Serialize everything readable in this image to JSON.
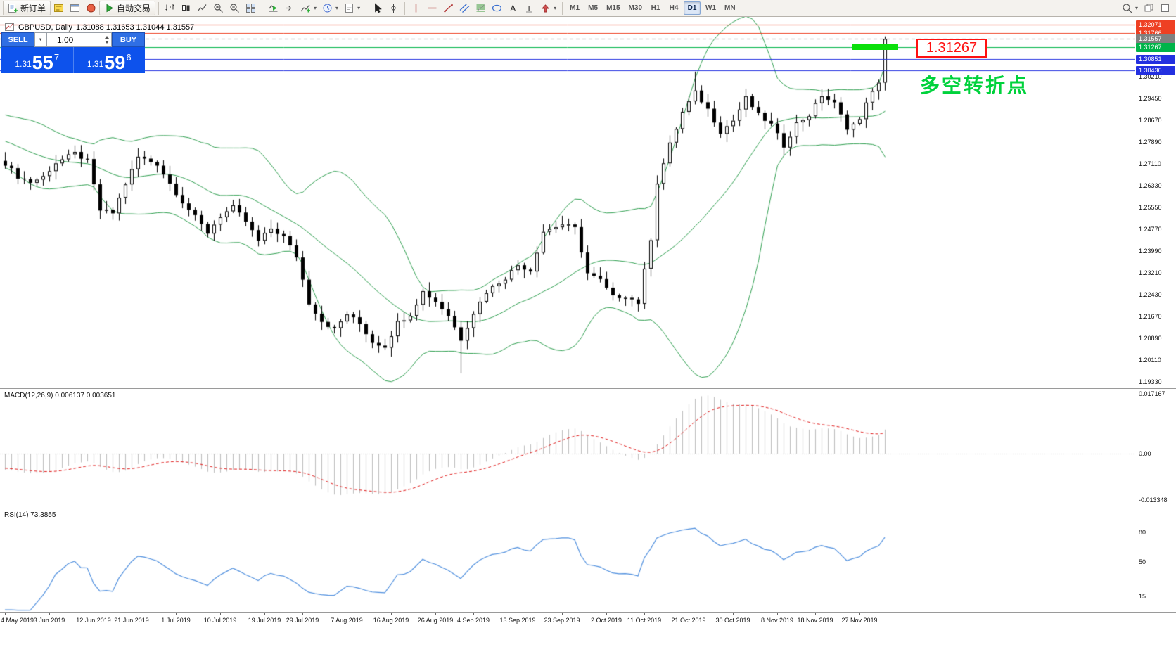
{
  "toolbar": {
    "groups": [
      [
        {
          "name": "new-order-button",
          "icon": "new-order",
          "label": "新订单"
        },
        {
          "name": "market-watch-button",
          "icon": "market-watch"
        },
        {
          "name": "data-window-button",
          "icon": "data-window"
        },
        {
          "name": "navigator-button",
          "icon": "navigator"
        },
        {
          "name": "autotrade-button",
          "icon": "autotrade",
          "label": "自动交易"
        }
      ],
      [
        {
          "name": "bar-chart-button",
          "icon": "bar-chart"
        },
        {
          "name": "candlestick-chart-button",
          "icon": "candle-chart"
        },
        {
          "name": "line-chart-button",
          "icon": "line-chart"
        },
        {
          "name": "zoom-in-button",
          "icon": "zoom-in"
        },
        {
          "name": "zoom-out-button",
          "icon": "zoom-out"
        },
        {
          "name": "tile-windows-button",
          "icon": "tile-windows"
        }
      ],
      [
        {
          "name": "auto-scroll-button",
          "icon": "auto-scroll"
        },
        {
          "name": "chart-shift-button",
          "icon": "chart-shift"
        },
        {
          "name": "indicators-button",
          "icon": "indicators",
          "caret": true
        },
        {
          "name": "periods-button",
          "icon": "periods",
          "caret": true
        },
        {
          "name": "templates-button",
          "icon": "templates",
          "caret": true
        }
      ],
      [
        {
          "name": "cursor-button",
          "icon": "cursor"
        },
        {
          "name": "crosshair-button",
          "icon": "crosshair"
        }
      ],
      [
        {
          "name": "vertical-line-button",
          "icon": "vline"
        },
        {
          "name": "horizontal-line-button",
          "icon": "hline"
        },
        {
          "name": "trendline-button",
          "icon": "trendline"
        },
        {
          "name": "channel-button",
          "icon": "channel"
        },
        {
          "name": "fibonacci-button",
          "icon": "fibonacci"
        },
        {
          "name": "shapes-button",
          "icon": "shapes"
        },
        {
          "name": "text-button",
          "icon": "text"
        },
        {
          "name": "label-button",
          "icon": "label"
        },
        {
          "name": "arrows-button",
          "icon": "arrows",
          "caret": true
        }
      ]
    ],
    "timeframes": [
      {
        "label": "M1"
      },
      {
        "label": "M5"
      },
      {
        "label": "M15"
      },
      {
        "label": "M30"
      },
      {
        "label": "H1"
      },
      {
        "label": "H4"
      },
      {
        "label": "D1",
        "active": true
      },
      {
        "label": "W1"
      },
      {
        "label": "MN"
      }
    ],
    "right": [
      {
        "name": "search-button",
        "icon": "search",
        "caret": true
      },
      {
        "name": "window-restore-button",
        "icon": "win-restore"
      },
      {
        "name": "window-maximize-button",
        "icon": "win-max"
      }
    ]
  },
  "chart_header": {
    "symbol_period": "GBPUSD, Daily",
    "ohlc": "1.31088 1.31653 1.31044 1.31557"
  },
  "trade_panel": {
    "sell_label": "SELL",
    "buy_label": "BUY",
    "volume": "1.00",
    "sell_price": {
      "prefix": "1.31",
      "big": "55",
      "sup": "7"
    },
    "buy_price": {
      "prefix": "1.31",
      "big": "59",
      "sup": "6"
    }
  },
  "annotations": {
    "price_box": "1.31267",
    "turning_point": "多空转折点"
  },
  "chart_data": {
    "type": "candlestick",
    "symbol": "GBPUSD",
    "timeframe": "Daily",
    "candle_count": 140,
    "price_keypoints": [
      [
        0,
        1.2712
      ],
      [
        2,
        1.2665
      ],
      [
        4,
        1.2645
      ],
      [
        6,
        1.2665
      ],
      [
        8,
        1.2715
      ],
      [
        11,
        1.2748
      ],
      [
        13,
        1.272
      ],
      [
        15,
        1.2545
      ],
      [
        17,
        1.2535
      ],
      [
        19,
        1.264
      ],
      [
        21,
        1.2735
      ],
      [
        24,
        1.271
      ],
      [
        26,
        1.264
      ],
      [
        28,
        1.2575
      ],
      [
        30,
        1.252
      ],
      [
        32,
        1.2465
      ],
      [
        34,
        1.2525
      ],
      [
        36,
        1.2555
      ],
      [
        38,
        1.2505
      ],
      [
        40,
        1.2435
      ],
      [
        42,
        1.248
      ],
      [
        44,
        1.245
      ],
      [
        46,
        1.238
      ],
      [
        48,
        1.2215
      ],
      [
        50,
        1.215
      ],
      [
        52,
        1.212
      ],
      [
        54,
        1.2175
      ],
      [
        56,
        1.214
      ],
      [
        58,
        1.2075
      ],
      [
        60,
        1.206
      ],
      [
        62,
        1.2145
      ],
      [
        64,
        1.2175
      ],
      [
        66,
        1.2255
      ],
      [
        68,
        1.222
      ],
      [
        70,
        1.217
      ],
      [
        72,
        1.2085
      ],
      [
        74,
        1.218
      ],
      [
        76,
        1.2255
      ],
      [
        79,
        1.2305
      ],
      [
        81,
        1.235
      ],
      [
        83,
        1.233
      ],
      [
        85,
        1.247
      ],
      [
        88,
        1.2495
      ],
      [
        90,
        1.248
      ],
      [
        92,
        1.232
      ],
      [
        94,
        1.2295
      ],
      [
        96,
        1.2235
      ],
      [
        98,
        1.224
      ],
      [
        100,
        1.2215
      ],
      [
        102,
        1.2445
      ],
      [
        103,
        1.2645
      ],
      [
        105,
        1.278
      ],
      [
        107,
        1.2895
      ],
      [
        109,
        1.2965
      ],
      [
        111,
        1.2905
      ],
      [
        113,
        1.2825
      ],
      [
        115,
        1.2865
      ],
      [
        117,
        1.2945
      ],
      [
        119,
        1.2885
      ],
      [
        121,
        1.285
      ],
      [
        123,
        1.2775
      ],
      [
        125,
        1.2855
      ],
      [
        127,
        1.2885
      ],
      [
        129,
        1.2955
      ],
      [
        131,
        1.2925
      ],
      [
        133,
        1.284
      ],
      [
        135,
        1.2865
      ],
      [
        136,
        1.2935
      ],
      [
        138,
        1.2995
      ],
      [
        139,
        1.3156
      ]
    ],
    "wick_events": [
      {
        "index": 72,
        "low_extension": 0.0105
      },
      {
        "index": 109,
        "high_extension": 0.0045
      },
      {
        "index": 139,
        "high_set": 1.31653
      }
    ],
    "overlays": {
      "name": "Bollinger Bands",
      "period": 20,
      "deviation": 2,
      "color": "#2e9e4f"
    },
    "horizontal_levels": [
      {
        "price": "1.32071",
        "color": "#ee4023",
        "style": "solid"
      },
      {
        "price": "1.31766",
        "color": "#ee4023",
        "style": "solid"
      },
      {
        "price": "1.31557",
        "color": "#808080",
        "style": "dash"
      },
      {
        "price": "1.31267",
        "color": "#00b44a",
        "style": "solid"
      },
      {
        "price": "1.30851",
        "color": "#2330e0",
        "style": "solid"
      },
      {
        "price": "1.30436",
        "color": "#2330e0",
        "style": "solid"
      }
    ],
    "y_axis_ticks": [
      "1.30210",
      "1.29450",
      "1.28670",
      "1.27890",
      "1.27110",
      "1.26330",
      "1.25550",
      "1.24770",
      "1.23990",
      "1.23210",
      "1.22430",
      "1.21670",
      "1.20890",
      "1.20110",
      "1.19330"
    ],
    "x_axis_dates": [
      {
        "label": "4 May 2019",
        "index": 0,
        "align": "left"
      },
      {
        "label": "3 Jun 2019",
        "index": 7
      },
      {
        "label": "12 Jun 2019",
        "index": 14
      },
      {
        "label": "21 Jun 2019",
        "index": 20
      },
      {
        "label": "1 Jul 2019",
        "index": 27
      },
      {
        "label": "10 Jul 2019",
        "index": 34
      },
      {
        "label": "19 Jul 2019",
        "index": 41
      },
      {
        "label": "29 Jul 2019",
        "index": 47
      },
      {
        "label": "7 Aug 2019",
        "index": 54
      },
      {
        "label": "16 Aug 2019",
        "index": 61
      },
      {
        "label": "26 Aug 2019",
        "index": 68
      },
      {
        "label": "4 Sep 2019",
        "index": 74
      },
      {
        "label": "13 Sep 2019",
        "index": 81
      },
      {
        "label": "23 Sep 2019",
        "index": 88
      },
      {
        "label": "2 Oct 2019",
        "index": 95
      },
      {
        "label": "11 Oct 2019",
        "index": 101
      },
      {
        "label": "21 Oct 2019",
        "index": 108
      },
      {
        "label": "30 Oct 2019",
        "index": 115
      },
      {
        "label": "8 Nov 2019",
        "index": 122
      },
      {
        "label": "18 Nov 2019",
        "index": 128
      },
      {
        "label": "27 Nov 2019",
        "index": 135
      }
    ],
    "indicators": [
      {
        "name": "MACD",
        "label": "MACD(12,26,9) 0.006137 0.003651",
        "axis_ticks": [
          "0.017167",
          "0.00",
          "-0.013348"
        ]
      },
      {
        "name": "RSI",
        "label": "RSI(14) 73.3855",
        "axis_ticks": [
          "80",
          "50",
          "15"
        ]
      }
    ]
  }
}
